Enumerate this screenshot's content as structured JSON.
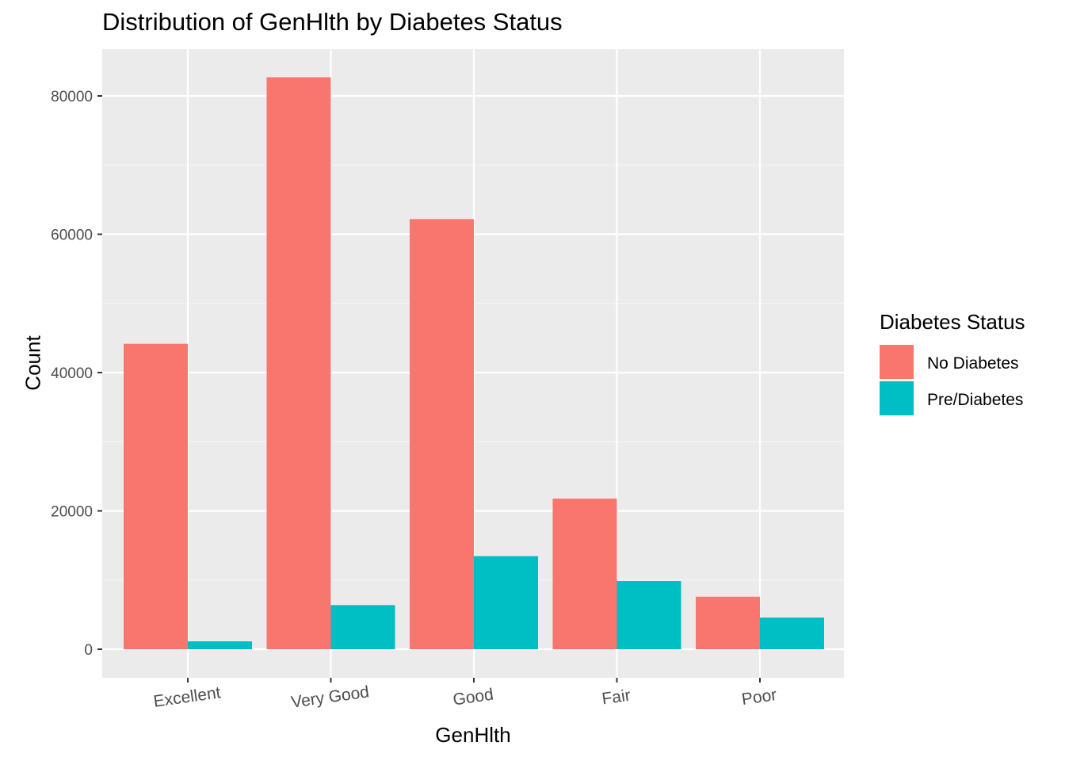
{
  "chart_data": {
    "type": "bar",
    "title": "Distribution of GenHlth by Diabetes Status",
    "xlabel": "GenHlth",
    "ylabel": "Count",
    "categories": [
      "Excellent",
      "Very Good",
      "Good",
      "Fair",
      "Poor"
    ],
    "series": [
      {
        "name": "No Diabetes",
        "color": "#F8766D",
        "values": [
          44160,
          82700,
          62190,
          21780,
          7590
        ]
      },
      {
        "name": "Pre/Diabetes",
        "color": "#00BFC4",
        "values": [
          1140,
          6380,
          13460,
          9850,
          4580
        ]
      }
    ],
    "yticks": [
      "0",
      "20000",
      "40000",
      "60000",
      "80000"
    ],
    "ylim": [
      -3000,
      86500
    ],
    "grid": true,
    "legend": {
      "title": "Diabetes Status",
      "position": "right"
    }
  }
}
